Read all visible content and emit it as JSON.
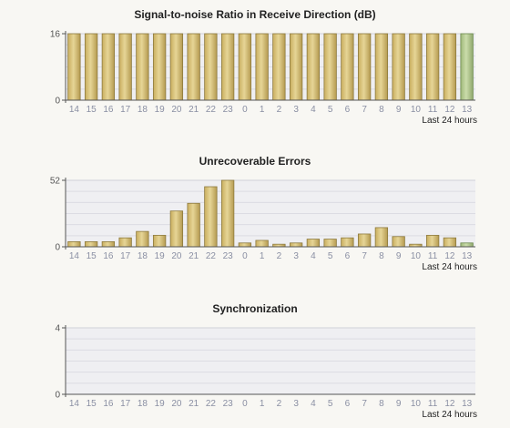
{
  "chart_data": [
    {
      "type": "bar",
      "title": "Signal-to-noise Ratio in Receive Direction (dB)",
      "note": "Last 24 hours",
      "categories": [
        "14",
        "15",
        "16",
        "17",
        "18",
        "19",
        "20",
        "21",
        "22",
        "23",
        "0",
        "1",
        "2",
        "3",
        "4",
        "5",
        "6",
        "7",
        "8",
        "9",
        "10",
        "11",
        "12",
        "13"
      ],
      "values": [
        16,
        16,
        16,
        16,
        16,
        16,
        16,
        16,
        16,
        16,
        16,
        16,
        16,
        16,
        16,
        16,
        16,
        16,
        16,
        16,
        16,
        16,
        16,
        16
      ],
      "ylim": [
        0,
        16
      ],
      "yticks": [
        "0",
        "16"
      ],
      "bar_color": "#d8c27a",
      "highlight_color": "#b8cf8e",
      "highlight_index": 23
    },
    {
      "type": "bar",
      "title": "Unrecoverable Errors",
      "note": "Last 24 hours",
      "categories": [
        "14",
        "15",
        "16",
        "17",
        "18",
        "19",
        "20",
        "21",
        "22",
        "23",
        "0",
        "1",
        "2",
        "3",
        "4",
        "5",
        "6",
        "7",
        "8",
        "9",
        "10",
        "11",
        "12",
        "13"
      ],
      "values": [
        4,
        4,
        4,
        7,
        12,
        9,
        28,
        34,
        47,
        52,
        3,
        5,
        2,
        3,
        6,
        6,
        7,
        10,
        15,
        8,
        2,
        9,
        7,
        3
      ],
      "ylim": [
        0,
        52
      ],
      "yticks": [
        "0",
        "52"
      ],
      "bar_color": "#d8c27a",
      "highlight_color": "#b8cf8e",
      "highlight_index": 23
    },
    {
      "type": "bar",
      "title": "Synchronization",
      "note": "Last 24 hours",
      "categories": [
        "14",
        "15",
        "16",
        "17",
        "18",
        "19",
        "20",
        "21",
        "22",
        "23",
        "0",
        "1",
        "2",
        "3",
        "4",
        "5",
        "6",
        "7",
        "8",
        "9",
        "10",
        "11",
        "12",
        "13"
      ],
      "values": [
        0,
        0,
        0,
        0,
        0,
        0,
        0,
        0,
        0,
        0,
        0,
        0,
        0,
        0,
        0,
        0,
        0,
        0,
        0,
        0,
        0,
        0,
        0,
        0
      ],
      "ylim": [
        0,
        4
      ],
      "yticks": [
        "0",
        "4"
      ],
      "bar_color": "#d8c27a",
      "highlight_color": "#b8cf8e",
      "highlight_index": 23
    }
  ]
}
